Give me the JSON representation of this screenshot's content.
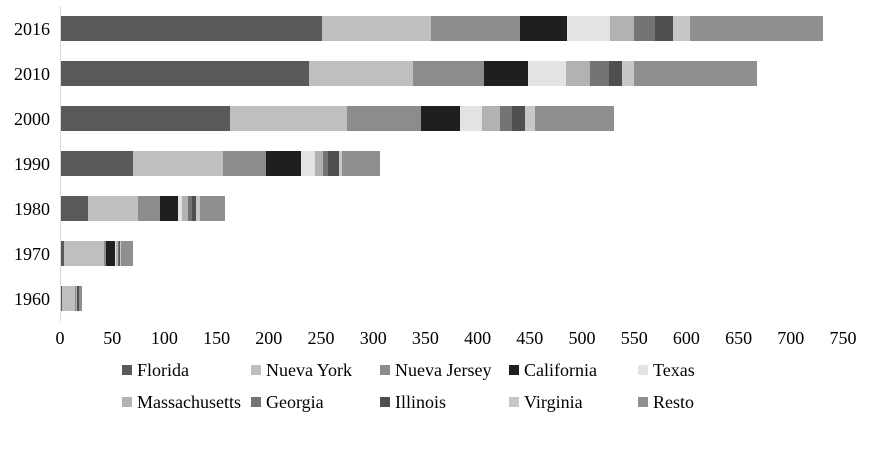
{
  "chart_data": {
    "type": "bar",
    "orientation": "horizontal",
    "stacked": true,
    "title": "",
    "xlabel": "",
    "ylabel": "",
    "xlim": [
      0,
      750
    ],
    "x_ticks": [
      0,
      50,
      100,
      150,
      200,
      250,
      300,
      350,
      400,
      450,
      500,
      550,
      600,
      650,
      700,
      750
    ],
    "grid": false,
    "legend_position": "bottom",
    "categories": [
      "2016",
      "2010",
      "2000",
      "1990",
      "1980",
      "1970",
      "1960"
    ],
    "series": [
      {
        "name": "Florida",
        "color": "#595959",
        "values": [
          250,
          238,
          162,
          69,
          26,
          3,
          1
        ]
      },
      {
        "name": "Nueva York",
        "color": "#bfbfbf",
        "values": [
          105,
          100,
          112,
          86,
          48,
          38,
          12
        ]
      },
      {
        "name": "Nueva Jersey",
        "color": "#8c8c8c",
        "values": [
          85,
          68,
          71,
          42,
          21,
          2,
          1
        ]
      },
      {
        "name": "California",
        "color": "#1f1f1f",
        "values": [
          45,
          42,
          38,
          33,
          17,
          9,
          0
        ]
      },
      {
        "name": "Texas",
        "color": "#e3e3e3",
        "values": [
          42,
          36,
          21,
          14,
          4,
          1,
          0
        ]
      },
      {
        "name": "Massachusetts",
        "color": "#b2b2b2",
        "values": [
          23,
          23,
          17,
          7,
          6,
          2,
          1
        ]
      },
      {
        "name": "Georgia",
        "color": "#747474",
        "values": [
          20,
          19,
          12,
          5,
          4,
          1,
          0
        ]
      },
      {
        "name": "Illinois",
        "color": "#4f4f4f",
        "values": [
          17,
          12,
          12,
          11,
          4,
          1,
          2
        ]
      },
      {
        "name": "Virginia",
        "color": "#c7c7c7",
        "values": [
          16,
          12,
          10,
          3,
          3,
          1,
          0
        ]
      },
      {
        "name": "Resto",
        "color": "#8f8f8f",
        "values": [
          128,
          118,
          75,
          36,
          24,
          11,
          3
        ]
      }
    ],
    "legend_rows": [
      [
        "Florida",
        "Nueva York",
        "Nueva Jersey",
        "California",
        "Texas"
      ],
      [
        "Massachusetts",
        "Georgia",
        "Illinois",
        "Virginia",
        "Resto"
      ]
    ]
  }
}
